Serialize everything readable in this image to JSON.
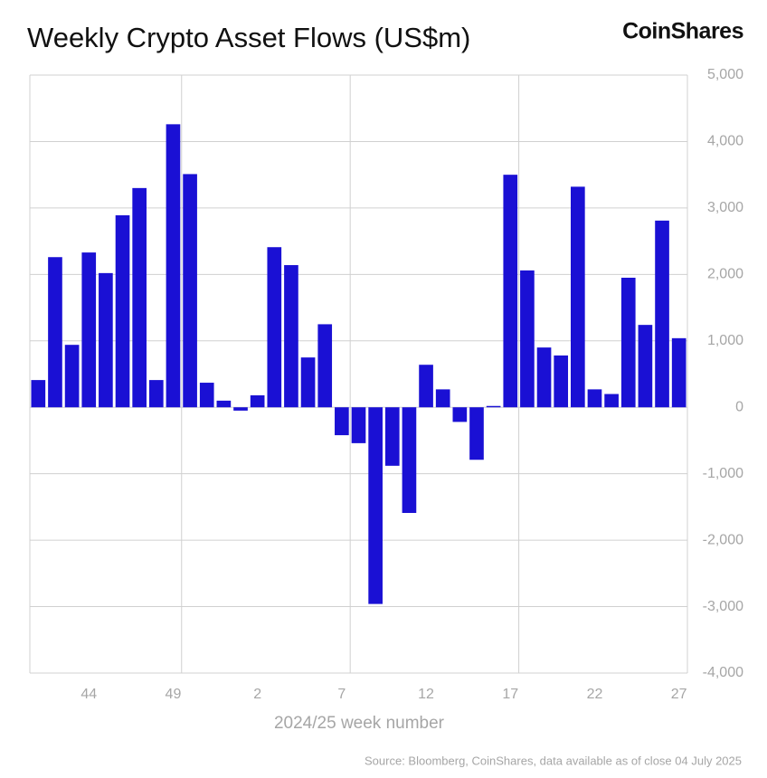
{
  "chart_data": {
    "type": "bar",
    "title": "Weekly Crypto Asset Flows (US$m)",
    "brand": "CoinShares",
    "x_label": "2024/25 week number",
    "source": "Source: Bloomberg, CoinShares, data available as of close 04 July 2025",
    "categories": [
      null,
      null,
      null,
      "44",
      null,
      null,
      null,
      null,
      "49",
      null,
      null,
      null,
      null,
      "2",
      null,
      null,
      null,
      null,
      "7",
      null,
      null,
      null,
      null,
      "12",
      null,
      null,
      null,
      null,
      "17",
      null,
      null,
      null,
      null,
      "22",
      null,
      null,
      null,
      null,
      "27"
    ],
    "values": [
      410,
      2260,
      940,
      2330,
      2020,
      2890,
      3300,
      410,
      4260,
      3510,
      370,
      100,
      -50,
      180,
      2410,
      2140,
      750,
      1250,
      -420,
      -540,
      -2960,
      -880,
      -1590,
      640,
      270,
      -220,
      -790,
      20,
      3500,
      2060,
      900,
      780,
      3320,
      270,
      200,
      1950,
      1240,
      2810,
      1040
    ],
    "color": "#1a10d4",
    "ylim": [
      -4000,
      5000
    ],
    "yticks": [
      {
        "value": -4000,
        "label": "-4,000"
      },
      {
        "value": -3000,
        "label": "-3,000"
      },
      {
        "value": -2000,
        "label": "-2,000"
      },
      {
        "value": -1000,
        "label": "-1,000"
      },
      0,
      {
        "value": 1000,
        "label": "1,000"
      },
      {
        "value": 2000,
        "label": "2,000"
      },
      {
        "value": 3000,
        "label": "3,000"
      },
      {
        "value": 4000,
        "label": "4,000"
      },
      {
        "value": 5000,
        "label": "5,000"
      }
    ],
    "grid": true
  }
}
